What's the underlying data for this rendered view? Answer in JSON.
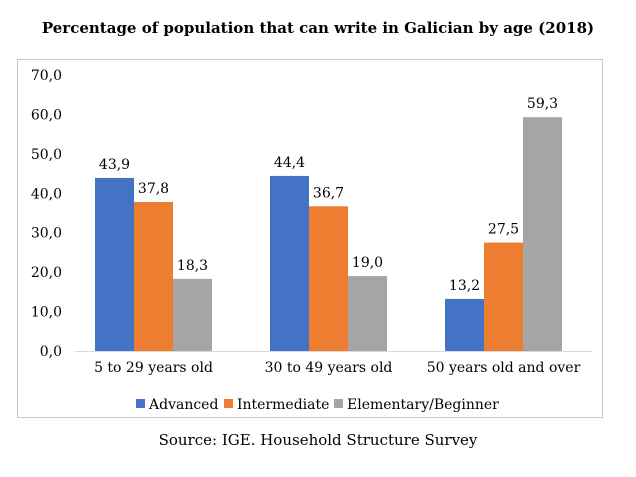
{
  "chart_data": {
    "type": "bar",
    "title": "Percentage of population that can write in Galician by age (2018)",
    "categories": [
      "5 to 29 years old",
      "30 to 49 years old",
      "50 years old and over"
    ],
    "series": [
      {
        "name": "Advanced",
        "color": "#4472c4",
        "values": [
          43.9,
          44.4,
          13.2
        ],
        "labels": [
          "43,9",
          "44,4",
          "13,2"
        ]
      },
      {
        "name": "Intermediate",
        "color": "#ed7d31",
        "values": [
          37.8,
          36.7,
          27.5
        ],
        "labels": [
          "37,8",
          "36,7",
          "27,5"
        ]
      },
      {
        "name": "Elementary/Beginner",
        "color": "#a5a5a5",
        "values": [
          18.3,
          19.0,
          59.3
        ],
        "labels": [
          "18,3",
          "19,0",
          "59,3"
        ]
      }
    ],
    "yticks": [
      0,
      10,
      20,
      30,
      40,
      50,
      60,
      70
    ],
    "ytick_labels": [
      "0,0",
      "10,0",
      "20,0",
      "30,0",
      "40,0",
      "50,0",
      "60,0",
      "70,0"
    ],
    "ylim": [
      0,
      70
    ],
    "xlabel": "",
    "ylabel": "",
    "grid": false,
    "legend": "bottom"
  },
  "source": "Source: IGE. Household Structure Survey"
}
